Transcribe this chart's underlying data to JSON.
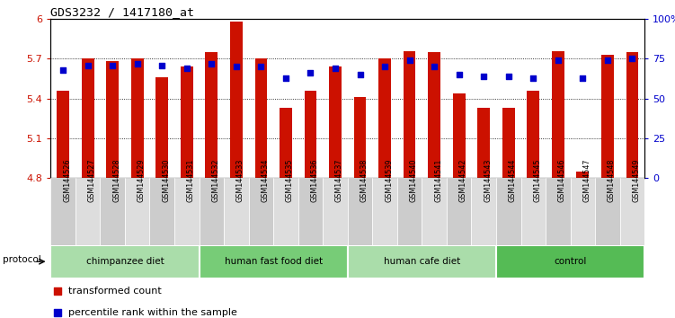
{
  "title": "GDS3232 / 1417180_at",
  "samples": [
    "GSM144526",
    "GSM144527",
    "GSM144528",
    "GSM144529",
    "GSM144530",
    "GSM144531",
    "GSM144532",
    "GSM144533",
    "GSM144534",
    "GSM144535",
    "GSM144536",
    "GSM144537",
    "GSM144538",
    "GSM144539",
    "GSM144540",
    "GSM144541",
    "GSM144542",
    "GSM144543",
    "GSM144544",
    "GSM144545",
    "GSM144546",
    "GSM144547",
    "GSM144548",
    "GSM144549"
  ],
  "bar_values": [
    5.46,
    5.7,
    5.68,
    5.7,
    5.56,
    5.64,
    5.75,
    5.98,
    5.7,
    5.33,
    5.46,
    5.64,
    5.41,
    5.7,
    5.76,
    5.75,
    5.44,
    5.33,
    5.33,
    5.46,
    5.76,
    4.85,
    5.73,
    5.75
  ],
  "percentile_values": [
    68,
    71,
    71,
    72,
    71,
    69,
    72,
    70,
    70,
    63,
    66,
    69,
    65,
    70,
    74,
    70,
    65,
    64,
    64,
    63,
    74,
    63,
    74,
    75
  ],
  "bar_color": "#cc1100",
  "dot_color": "#0000cc",
  "ylim_left": [
    4.8,
    6.0
  ],
  "ylim_right": [
    0,
    100
  ],
  "yticks_left": [
    4.8,
    5.1,
    5.4,
    5.7,
    6.0
  ],
  "ytick_labels_left": [
    "4.8",
    "5.1",
    "5.4",
    "5.7",
    "6"
  ],
  "yticks_right": [
    0,
    25,
    50,
    75,
    100
  ],
  "ytick_labels_right": [
    "0",
    "25",
    "50",
    "75",
    "100%"
  ],
  "groups": [
    {
      "label": "chimpanzee diet",
      "start": 0,
      "end": 6,
      "color": "#aaddaa"
    },
    {
      "label": "human fast food diet",
      "start": 6,
      "end": 12,
      "color": "#77cc77"
    },
    {
      "label": "human cafe diet",
      "start": 12,
      "end": 18,
      "color": "#aaddaa"
    },
    {
      "label": "control",
      "start": 18,
      "end": 24,
      "color": "#55bb55"
    }
  ],
  "protocol_label": "protocol",
  "legend_bar_label": "transformed count",
  "legend_dot_label": "percentile rank within the sample",
  "bg_color": "#ffffff",
  "bar_bottom": 4.8,
  "bar_width": 0.5,
  "cell_colors": [
    "#cccccc",
    "#dddddd"
  ],
  "tick_color_left": "#cc1100",
  "tick_color_right": "#0000cc"
}
